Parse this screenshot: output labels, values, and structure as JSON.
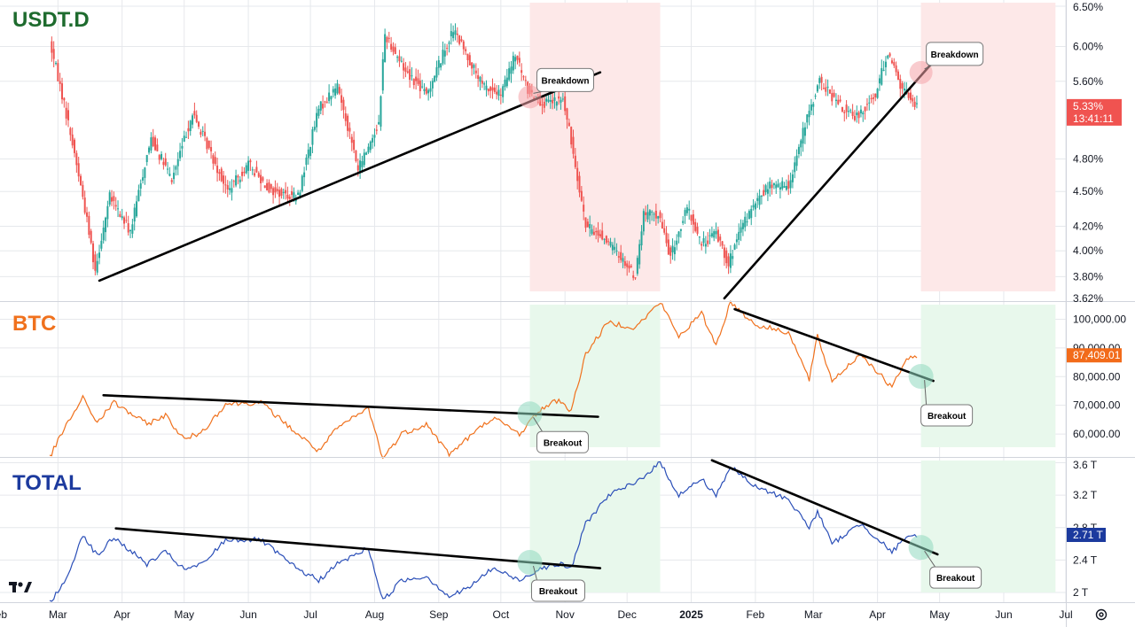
{
  "chart_data": [
    {
      "type": "candlestick",
      "title": "USDT.D",
      "unit": "%",
      "y_scale": "log",
      "ylim": [
        3.62,
        6.58
      ],
      "yticks": [
        "6.50%",
        "6.00%",
        "5.60%",
        "4.80%",
        "4.50%",
        "4.20%",
        "4.00%",
        "3.80%",
        "3.62%"
      ],
      "ytick_values": [
        6.5,
        6.0,
        5.6,
        4.8,
        4.5,
        4.2,
        4.0,
        3.8,
        3.62
      ],
      "last_price_label": "5.33%",
      "countdown_label": "13:41:11",
      "last_price_color": "#f05350",
      "up_color": "#26a69a",
      "down_color": "#ef5350",
      "path": [
        [
          "2024-02-26",
          6.05
        ],
        [
          "2024-03-05",
          5.25
        ],
        [
          "2024-03-12",
          4.55
        ],
        [
          "2024-03-19",
          3.85
        ],
        [
          "2024-03-26",
          4.45
        ],
        [
          "2024-04-05",
          4.15
        ],
        [
          "2024-04-15",
          5.0
        ],
        [
          "2024-04-25",
          4.6
        ],
        [
          "2024-05-05",
          5.25
        ],
        [
          "2024-05-15",
          4.8
        ],
        [
          "2024-05-22",
          4.5
        ],
        [
          "2024-06-01",
          4.75
        ],
        [
          "2024-06-12",
          4.5
        ],
        [
          "2024-06-25",
          4.45
        ],
        [
          "2024-07-05",
          5.3
        ],
        [
          "2024-07-14",
          5.55
        ],
        [
          "2024-07-24",
          4.7
        ],
        [
          "2024-08-03",
          5.15
        ],
        [
          "2024-08-06",
          6.15
        ],
        [
          "2024-08-15",
          5.75
        ],
        [
          "2024-08-26",
          5.45
        ],
        [
          "2024-09-08",
          6.2
        ],
        [
          "2024-09-22",
          5.55
        ],
        [
          "2024-10-01",
          5.45
        ],
        [
          "2024-10-08",
          5.9
        ],
        [
          "2024-10-14",
          5.5
        ],
        [
          "2024-10-22",
          5.35
        ],
        [
          "2024-10-31",
          5.4
        ],
        [
          "2024-11-06",
          4.75
        ],
        [
          "2024-11-11",
          4.2
        ],
        [
          "2024-11-20",
          4.1
        ],
        [
          "2024-11-28",
          3.95
        ],
        [
          "2024-12-05",
          3.8
        ],
        [
          "2024-12-09",
          4.3
        ],
        [
          "2024-12-16",
          4.3
        ],
        [
          "2024-12-22",
          3.95
        ],
        [
          "2024-12-30",
          4.35
        ],
        [
          "2025-01-06",
          4.05
        ],
        [
          "2025-01-13",
          4.15
        ],
        [
          "2025-01-19",
          3.9
        ],
        [
          "2025-01-27",
          4.25
        ],
        [
          "2025-02-07",
          4.55
        ],
        [
          "2025-02-17",
          4.55
        ],
        [
          "2025-02-26",
          5.2
        ],
        [
          "2025-03-04",
          5.6
        ],
        [
          "2025-03-13",
          5.35
        ],
        [
          "2025-03-21",
          5.2
        ],
        [
          "2025-03-31",
          5.45
        ],
        [
          "2025-04-06",
          5.95
        ],
        [
          "2025-04-12",
          5.55
        ],
        [
          "2025-04-20",
          5.33
        ]
      ],
      "annotations": [
        {
          "label": "Breakdown",
          "type": "callout"
        },
        {
          "label": "Breakdown",
          "type": "callout"
        }
      ],
      "trendlines": [
        {
          "from": [
            "2024-03-21",
            3.77
          ],
          "to": [
            "2024-11-18",
            5.7
          ]
        },
        {
          "from": [
            "2025-01-17",
            3.64
          ],
          "to": [
            "2025-04-29",
            5.85
          ]
        }
      ],
      "zones": [
        {
          "from": "2024-10-15",
          "to": "2024-12-17",
          "color": "#fde8e8"
        },
        {
          "from": "2025-04-22",
          "to": "2025-06-26",
          "color": "#fde8e8"
        }
      ]
    },
    {
      "type": "line",
      "title": "BTC",
      "ylim": [
        52000,
        106000
      ],
      "yticks": [
        "100,000.00",
        "90,000.00",
        "80,000.00",
        "70,000.00",
        "60,000.00"
      ],
      "ytick_values": [
        100000,
        90000,
        80000,
        70000,
        60000
      ],
      "last_price_label": "87,409.01",
      "last_price_color": "#f26b1a",
      "line_color": "#f0711d",
      "path": [
        [
          "2024-02-26",
          52000
        ],
        [
          "2024-03-05",
          63000
        ],
        [
          "2024-03-13",
          72500
        ],
        [
          "2024-03-20",
          64000
        ],
        [
          "2024-03-28",
          71000
        ],
        [
          "2024-04-13",
          63500
        ],
        [
          "2024-04-22",
          66500
        ],
        [
          "2024-05-01",
          58000
        ],
        [
          "2024-05-10",
          61000
        ],
        [
          "2024-05-21",
          70500
        ],
        [
          "2024-06-07",
          71000
        ],
        [
          "2024-06-24",
          60500
        ],
        [
          "2024-07-05",
          54000
        ],
        [
          "2024-07-14",
          62000
        ],
        [
          "2024-07-29",
          69000
        ],
        [
          "2024-08-05",
          51500
        ],
        [
          "2024-08-14",
          60000
        ],
        [
          "2024-08-26",
          63500
        ],
        [
          "2024-09-06",
          53000
        ],
        [
          "2024-09-15",
          58500
        ],
        [
          "2024-09-27",
          65800
        ],
        [
          "2024-10-10",
          60000
        ],
        [
          "2024-10-20",
          68500
        ],
        [
          "2024-10-29",
          72000
        ],
        [
          "2024-11-04",
          68000
        ],
        [
          "2024-11-11",
          88000
        ],
        [
          "2024-11-22",
          99000
        ],
        [
          "2024-12-05",
          97000
        ],
        [
          "2024-12-17",
          106000
        ],
        [
          "2024-12-26",
          94000
        ],
        [
          "2025-01-06",
          102000
        ],
        [
          "2025-01-13",
          91000
        ],
        [
          "2025-01-20",
          106000
        ],
        [
          "2025-02-01",
          98000
        ],
        [
          "2025-02-17",
          95500
        ],
        [
          "2025-02-27",
          79000
        ],
        [
          "2025-03-03",
          94000
        ],
        [
          "2025-03-10",
          78500
        ],
        [
          "2025-03-24",
          88000
        ],
        [
          "2025-04-08",
          76000
        ],
        [
          "2025-04-14",
          85000
        ],
        [
          "2025-04-20",
          87409
        ]
      ],
      "annotations": [
        {
          "label": "Breakout",
          "type": "callout"
        },
        {
          "label": "Breakout",
          "type": "callout"
        }
      ],
      "trendlines": [
        {
          "from": [
            "2024-03-23",
            73500
          ],
          "to": [
            "2024-11-17",
            66000
          ]
        },
        {
          "from": [
            "2025-01-22",
            103500
          ],
          "to": [
            "2025-04-28",
            78500
          ]
        }
      ],
      "zones": [
        {
          "from": "2024-10-15",
          "to": "2024-12-17",
          "color": "#e8f8ec"
        },
        {
          "from": "2025-04-22",
          "to": "2025-06-26",
          "color": "#e8f8ec"
        }
      ]
    },
    {
      "type": "line",
      "title": "TOTAL",
      "ylim": [
        1.88,
        3.66
      ],
      "yticks": [
        "3.6 T",
        "3.2 T",
        "2.8 T",
        "2.4 T",
        "2 T"
      ],
      "ytick_values": [
        3.6,
        3.2,
        2.8,
        2.4,
        2.0
      ],
      "last_price_label": "2.71 T",
      "last_price_color": "#1c3a9e",
      "line_color": "#2b4fb8",
      "path": [
        [
          "2024-02-26",
          1.88
        ],
        [
          "2024-03-05",
          2.15
        ],
        [
          "2024-03-13",
          2.72
        ],
        [
          "2024-03-20",
          2.45
        ],
        [
          "2024-03-28",
          2.68
        ],
        [
          "2024-04-13",
          2.35
        ],
        [
          "2024-04-22",
          2.5
        ],
        [
          "2024-05-01",
          2.28
        ],
        [
          "2024-05-10",
          2.35
        ],
        [
          "2024-05-21",
          2.65
        ],
        [
          "2024-06-07",
          2.65
        ],
        [
          "2024-06-24",
          2.3
        ],
        [
          "2024-07-05",
          2.15
        ],
        [
          "2024-07-14",
          2.35
        ],
        [
          "2024-07-29",
          2.55
        ],
        [
          "2024-08-05",
          1.9
        ],
        [
          "2024-08-14",
          2.15
        ],
        [
          "2024-08-26",
          2.2
        ],
        [
          "2024-09-06",
          1.95
        ],
        [
          "2024-09-15",
          2.05
        ],
        [
          "2024-09-27",
          2.3
        ],
        [
          "2024-10-10",
          2.15
        ],
        [
          "2024-10-20",
          2.3
        ],
        [
          "2024-10-29",
          2.35
        ],
        [
          "2024-11-04",
          2.3
        ],
        [
          "2024-11-11",
          2.85
        ],
        [
          "2024-11-22",
          3.2
        ],
        [
          "2024-12-05",
          3.35
        ],
        [
          "2024-12-17",
          3.6
        ],
        [
          "2024-12-26",
          3.2
        ],
        [
          "2025-01-06",
          3.4
        ],
        [
          "2025-01-13",
          3.2
        ],
        [
          "2025-01-20",
          3.55
        ],
        [
          "2025-02-01",
          3.3
        ],
        [
          "2025-02-17",
          3.15
        ],
        [
          "2025-02-27",
          2.8
        ],
        [
          "2025-03-03",
          3.0
        ],
        [
          "2025-03-10",
          2.6
        ],
        [
          "2025-03-24",
          2.85
        ],
        [
          "2025-04-08",
          2.5
        ],
        [
          "2025-04-14",
          2.65
        ],
        [
          "2025-04-20",
          2.71
        ]
      ],
      "annotations": [
        {
          "label": "Breakout",
          "type": "callout"
        },
        {
          "label": "Breakout",
          "type": "callout"
        }
      ],
      "trendlines": [
        {
          "from": [
            "2024-03-29",
            2.79
          ],
          "to": [
            "2024-11-18",
            2.3
          ]
        },
        {
          "from": [
            "2025-01-11",
            3.63
          ],
          "to": [
            "2025-04-30",
            2.47
          ]
        }
      ],
      "zones": [
        {
          "from": "2024-10-15",
          "to": "2024-12-17",
          "color": "#e8f8ec"
        },
        {
          "from": "2025-04-22",
          "to": "2025-06-26",
          "color": "#e8f8ec"
        }
      ]
    }
  ],
  "x_axis": {
    "range": [
      "2024-02-02",
      "2025-07-01"
    ],
    "ticks": [
      {
        "label": "Feb",
        "date": "2024-02-01",
        "bold": false
      },
      {
        "label": "Mar",
        "date": "2024-03-01",
        "bold": false
      },
      {
        "label": "Apr",
        "date": "2024-04-01",
        "bold": false
      },
      {
        "label": "May",
        "date": "2024-05-01",
        "bold": false
      },
      {
        "label": "Jun",
        "date": "2024-06-01",
        "bold": false
      },
      {
        "label": "Jul",
        "date": "2024-07-01",
        "bold": false
      },
      {
        "label": "Aug",
        "date": "2024-08-01",
        "bold": false
      },
      {
        "label": "Sep",
        "date": "2024-09-01",
        "bold": false
      },
      {
        "label": "Oct",
        "date": "2024-10-01",
        "bold": false
      },
      {
        "label": "Nov",
        "date": "2024-11-01",
        "bold": false
      },
      {
        "label": "Dec",
        "date": "2024-12-01",
        "bold": false
      },
      {
        "label": "2025",
        "date": "2025-01-01",
        "bold": true
      },
      {
        "label": "Feb",
        "date": "2025-02-01",
        "bold": false
      },
      {
        "label": "Mar",
        "date": "2025-03-01",
        "bold": false
      },
      {
        "label": "Apr",
        "date": "2025-04-01",
        "bold": false
      },
      {
        "label": "May",
        "date": "2025-05-01",
        "bold": false
      },
      {
        "label": "Jun",
        "date": "2025-06-01",
        "bold": false
      },
      {
        "label": "Jul",
        "date": "2025-07-01",
        "bold": false
      }
    ]
  },
  "colors": {
    "usdt_title": "#1e6b2e",
    "btc_title": "#f0711d",
    "total_title": "#1c3a9e",
    "grid": "#e6e8ec",
    "trendline": "#000000",
    "breakdown_marker": "#f4a3a8",
    "breakout_marker": "#8fd8c0"
  },
  "icons": {
    "logo": "tradingview-logo-icon",
    "settings": "chart-settings-icon"
  }
}
